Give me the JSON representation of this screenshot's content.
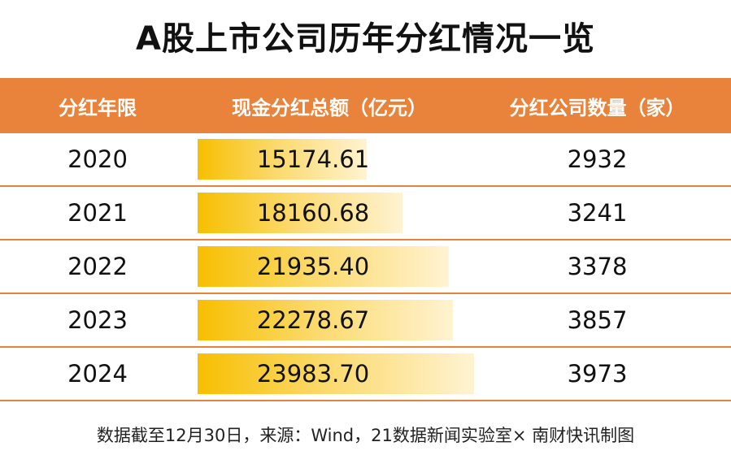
{
  "title": "A股上市公司历年分红情况一览",
  "headers": [
    "分红年限",
    "现金分红总额（亿元）",
    "分红公司数量（家）"
  ],
  "footer": "数据截至12月30日，来源：Wind，21数据新闻实验室× 南财快讯制图",
  "colors": {
    "header_bg": "#e9823a",
    "bar_start": "#f7bf00",
    "bar_end": "#fff3d2"
  },
  "chart_data": {
    "type": "table",
    "columns": [
      "分红年限",
      "现金分红总额（亿元）",
      "分红公司数量（家）"
    ],
    "rows": [
      [
        "2020",
        "15174.61",
        "2932"
      ],
      [
        "2021",
        "18160.68",
        "3241"
      ],
      [
        "2022",
        "21935.40",
        "3378"
      ],
      [
        "2023",
        "22278.67",
        "3857"
      ],
      [
        "2024",
        "23983.70",
        "3973"
      ]
    ],
    "bar_column": "现金分红总额（亿元）",
    "bar_values": [
      15174.61,
      18160.68,
      21935.4,
      22278.67,
      23983.7
    ]
  }
}
